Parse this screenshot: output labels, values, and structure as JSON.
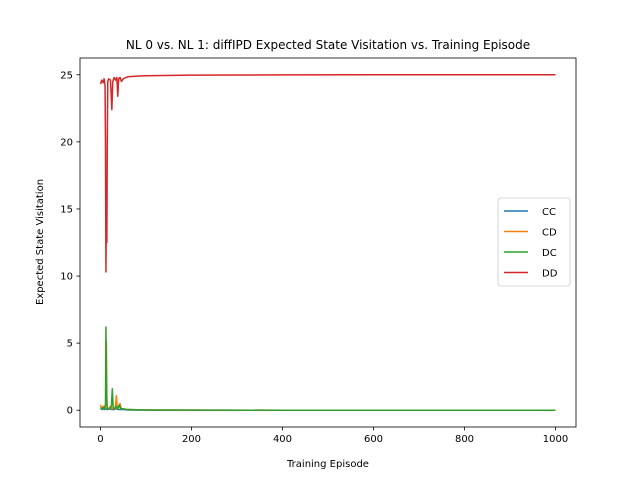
{
  "chart_data": {
    "type": "line",
    "title": "NL 0 vs. NL 1: diffIPD Expected State Visitation vs. Training Episode",
    "xlabel": "Training Episode",
    "ylabel": "Expected State Visitation",
    "xlim": [
      -45,
      1045
    ],
    "ylim": [
      -1.25,
      26.25
    ],
    "xticks": [
      0,
      200,
      400,
      600,
      800,
      1000
    ],
    "yticks": [
      0,
      5,
      10,
      15,
      20,
      25
    ],
    "grid": false,
    "legend_position": "center-right",
    "series": [
      {
        "name": "CC",
        "color": "#1f77b4",
        "points": [
          [
            0,
            0.1
          ],
          [
            5,
            0.05
          ],
          [
            10,
            0.3
          ],
          [
            12,
            0.1
          ],
          [
            14,
            0.05
          ],
          [
            20,
            0.1
          ],
          [
            25,
            0.05
          ],
          [
            30,
            0.05
          ],
          [
            35,
            0.1
          ],
          [
            40,
            0.05
          ],
          [
            50,
            0.05
          ],
          [
            60,
            0.02
          ],
          [
            100,
            0.01
          ],
          [
            200,
            0.005
          ],
          [
            400,
            0.0
          ],
          [
            600,
            0.0
          ],
          [
            800,
            0.0
          ],
          [
            1000,
            0.0
          ]
        ]
      },
      {
        "name": "CD",
        "color": "#ff7f0e",
        "points": [
          [
            0,
            0.4
          ],
          [
            3,
            0.1
          ],
          [
            6,
            0.3
          ],
          [
            9,
            0.05
          ],
          [
            12,
            0.4
          ],
          [
            13,
            5.1
          ],
          [
            14,
            1.0
          ],
          [
            15,
            0.2
          ],
          [
            18,
            0.1
          ],
          [
            22,
            0.3
          ],
          [
            25,
            0.1
          ],
          [
            28,
            0.2
          ],
          [
            32,
            0.05
          ],
          [
            35,
            1.1
          ],
          [
            37,
            0.1
          ],
          [
            40,
            0.2
          ],
          [
            43,
            0.5
          ],
          [
            46,
            0.1
          ],
          [
            50,
            0.1
          ],
          [
            60,
            0.05
          ],
          [
            100,
            0.02
          ],
          [
            200,
            0.01
          ],
          [
            400,
            0.0
          ],
          [
            600,
            0.0
          ],
          [
            800,
            0.0
          ],
          [
            1000,
            0.0
          ]
        ]
      },
      {
        "name": "DC",
        "color": "#2ca02c",
        "points": [
          [
            0,
            0.2
          ],
          [
            3,
            0.1
          ],
          [
            6,
            0.2
          ],
          [
            9,
            0.05
          ],
          [
            11,
            0.5
          ],
          [
            12,
            6.2
          ],
          [
            13,
            2.8
          ],
          [
            14,
            0.4
          ],
          [
            16,
            0.1
          ],
          [
            20,
            0.1
          ],
          [
            24,
            0.3
          ],
          [
            26,
            1.6
          ],
          [
            28,
            0.2
          ],
          [
            31,
            0.1
          ],
          [
            35,
            0.3
          ],
          [
            38,
            0.1
          ],
          [
            41,
            0.4
          ],
          [
            45,
            0.1
          ],
          [
            50,
            0.1
          ],
          [
            60,
            0.05
          ],
          [
            100,
            0.02
          ],
          [
            200,
            0.01
          ],
          [
            400,
            0.0
          ],
          [
            600,
            0.0
          ],
          [
            800,
            0.0
          ],
          [
            1000,
            0.0
          ]
        ]
      },
      {
        "name": "DD",
        "color": "#d62728",
        "points": [
          [
            0,
            24.3
          ],
          [
            3,
            24.6
          ],
          [
            6,
            24.4
          ],
          [
            8,
            24.7
          ],
          [
            10,
            24.2
          ],
          [
            11,
            20.0
          ],
          [
            12,
            10.3
          ],
          [
            13,
            15.0
          ],
          [
            14,
            12.5
          ],
          [
            15,
            20.0
          ],
          [
            16,
            24.5
          ],
          [
            18,
            24.7
          ],
          [
            22,
            24.6
          ],
          [
            25,
            22.4
          ],
          [
            27,
            24.5
          ],
          [
            30,
            24.8
          ],
          [
            33,
            24.6
          ],
          [
            36,
            24.8
          ],
          [
            38,
            23.4
          ],
          [
            40,
            24.7
          ],
          [
            43,
            24.8
          ],
          [
            46,
            24.5
          ],
          [
            50,
            24.7
          ],
          [
            60,
            24.85
          ],
          [
            80,
            24.9
          ],
          [
            100,
            24.93
          ],
          [
            200,
            24.97
          ],
          [
            400,
            24.99
          ],
          [
            600,
            25.0
          ],
          [
            800,
            25.0
          ],
          [
            1000,
            25.0
          ]
        ]
      }
    ]
  }
}
